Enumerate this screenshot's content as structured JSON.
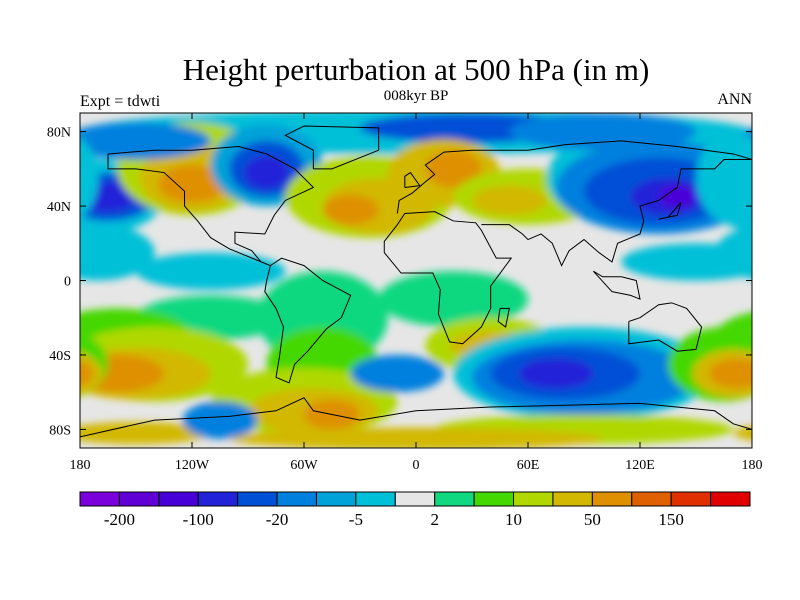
{
  "title": "Height perturbation at 500 hPa (in m)",
  "subtitle": "008kyr BP",
  "left_label": "Expt = tdwti",
  "right_label": "ANN",
  "chart_data": {
    "type": "heatmap",
    "title": "Height perturbation at 500 hPa (in m)",
    "subtitle": "008kyr BP",
    "x_ticks": [
      "180",
      "120W",
      "60W",
      "0",
      "60E",
      "120E",
      "180"
    ],
    "y_ticks": [
      "80N",
      "40N",
      "0",
      "40S",
      "80S"
    ],
    "xlim": [
      -180,
      180
    ],
    "ylim": [
      -90,
      90
    ],
    "colorbar": {
      "levels": [
        -200,
        -150,
        -100,
        -50,
        -20,
        -10,
        -5,
        -2,
        2,
        5,
        10,
        20,
        50,
        100,
        150,
        200
      ],
      "labels": [
        "-200",
        "-100",
        "-20",
        "-5",
        "2",
        "10",
        "50",
        "150"
      ],
      "colors": [
        "#7a00dc",
        "#6000d6",
        "#4800d8",
        "#2222d8",
        "#0050d6",
        "#0080de",
        "#00a2d8",
        "#00c0d8",
        "#e6e6e6",
        "#10d880",
        "#44d800",
        "#b0d800",
        "#d2b800",
        "#de9000",
        "#de6000",
        "#e03000",
        "#e00000"
      ]
    }
  }
}
